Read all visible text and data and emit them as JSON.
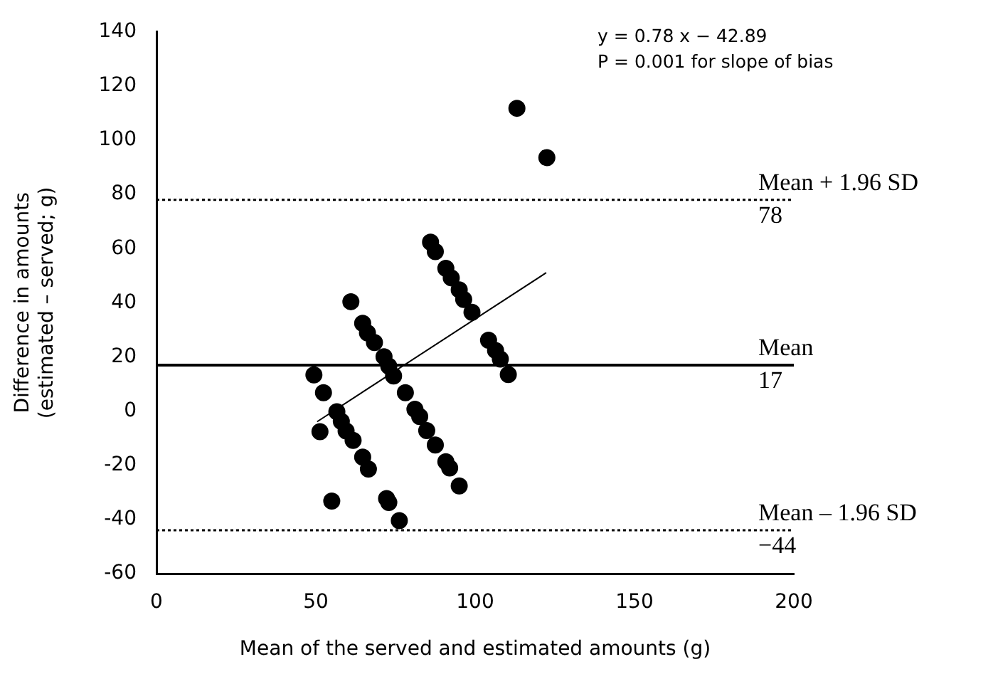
{
  "chart_data": {
    "type": "scatter",
    "xlabel": "Mean of the served and estimated amounts (g)",
    "ylabel": "Difference in amounts\n(estimated – served; g)",
    "xlim": [
      0,
      200
    ],
    "xticks": [
      0,
      50,
      100,
      150,
      200
    ],
    "ylim": [
      -60,
      140
    ],
    "yticks": [
      -60,
      -40,
      -20,
      0,
      20,
      40,
      60,
      80,
      100,
      120,
      140
    ],
    "grid": false,
    "legend": false,
    "marker": "circle",
    "series": [
      {
        "color": "#000000",
        "x": [
          49.4,
          52.4,
          56.6,
          58.0,
          59.5,
          61.7,
          64.7,
          66.5,
          51.3,
          55.0,
          72.2,
          72.9,
          76.2,
          61.0,
          64.7,
          66.2,
          68.4,
          71.4,
          72.9,
          74.4,
          78.1,
          81.1,
          82.6,
          84.8,
          87.5,
          90.8,
          92.0,
          95.0,
          86.0,
          87.5,
          90.8,
          92.5,
          95.0,
          96.4,
          99.0,
          104.2,
          106.4,
          107.9,
          110.4,
          113.1,
          122.5
        ],
        "values": [
          13.4,
          6.8,
          -0.2,
          -3.8,
          -7.3,
          -10.8,
          -17.0,
          -21.4,
          -7.6,
          -33.2,
          -32.3,
          -33.7,
          -40.4,
          40.4,
          32.4,
          28.9,
          25.3,
          20.1,
          16.6,
          13.0,
          6.8,
          0.7,
          -2.0,
          -7.2,
          -12.5,
          -18.7,
          -21.0,
          -27.6,
          62.4,
          58.9,
          52.7,
          49.2,
          44.8,
          41.2,
          36.5,
          26.2,
          22.4,
          19.2,
          13.5,
          111.8,
          93.6
        ]
      },
      {
        "type": "line",
        "color": "#000000",
        "x": [
          50.4,
          122.3
        ],
        "values": [
          -3.9,
          51.1
        ],
        "marker": "none",
        "line_style": "solid"
      }
    ],
    "ref_lines": [
      {
        "axis": "y",
        "value": 78,
        "label": "Mean + 1.96 SD\n78",
        "color": "#000000",
        "line_style": "dotted"
      },
      {
        "axis": "y",
        "value": 17,
        "label": "Mean\n17",
        "color": "#000000",
        "line_style": "solid"
      },
      {
        "axis": "y",
        "value": -44,
        "label": "Mean – 1.96 SD\n−44",
        "color": "#000000",
        "line_style": "dotted"
      }
    ],
    "annotations": [
      "y = 0.78 x − 42.89",
      "P = 0.001 for slope of bias"
    ]
  }
}
